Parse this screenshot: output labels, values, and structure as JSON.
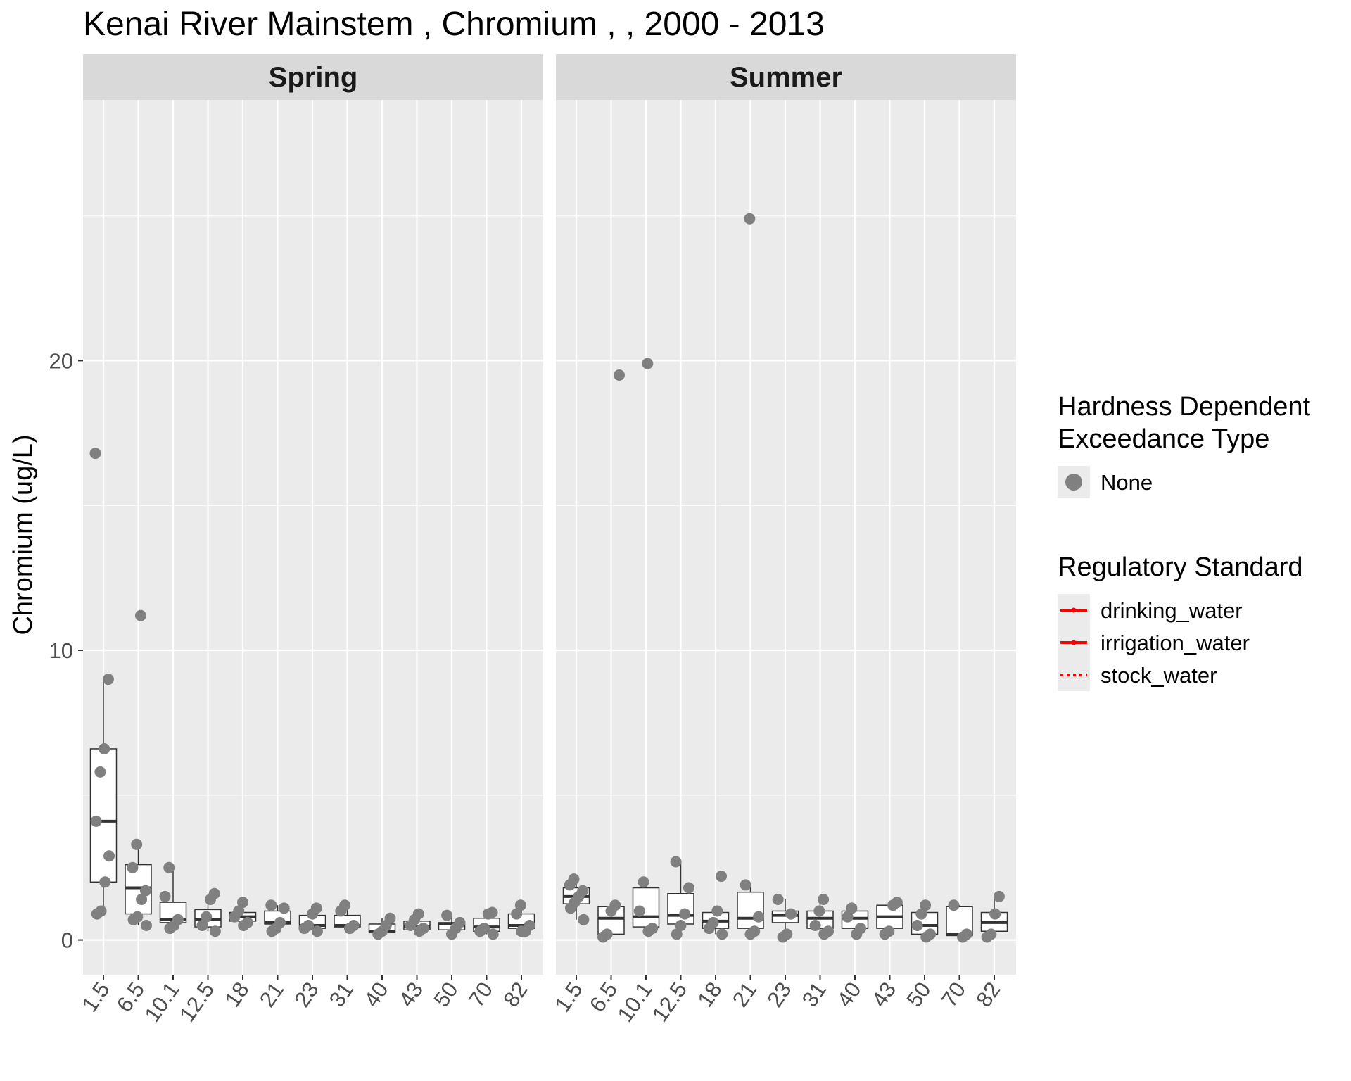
{
  "chart_data": {
    "type": "boxplot",
    "title": "Kenai River Mainstem , Chromium ,  , 2000 - 2013",
    "ylabel": "Chromium (ug/L)",
    "xlabel": "",
    "ylim": [
      -1.2,
      29
    ],
    "y_ticks": [
      0,
      10,
      20
    ],
    "grid": true,
    "categories": [
      "1.5",
      "6.5",
      "10.1",
      "12.5",
      "18",
      "21",
      "23",
      "31",
      "40",
      "43",
      "50",
      "70",
      "82"
    ],
    "panels": [
      {
        "name": "Spring",
        "boxes": [
          {
            "q1": 2.0,
            "median": 4.1,
            "q3": 6.6,
            "whisker_low": 1.0,
            "whisker_high": 8.9
          },
          {
            "q1": 0.9,
            "median": 1.8,
            "q3": 2.6,
            "whisker_low": 0.5,
            "whisker_high": 3.4
          },
          {
            "q1": 0.6,
            "median": 0.7,
            "q3": 1.3,
            "whisker_low": 0.4,
            "whisker_high": 2.5
          },
          {
            "q1": 0.45,
            "median": 0.7,
            "q3": 1.05,
            "whisker_low": 0.3,
            "whisker_high": 1.6
          },
          {
            "q1": 0.65,
            "median": 0.8,
            "q3": 0.95,
            "whisker_low": 0.5,
            "whisker_high": 1.3
          },
          {
            "q1": 0.55,
            "median": 0.6,
            "q3": 1.0,
            "whisker_low": 0.3,
            "whisker_high": 1.2
          },
          {
            "q1": 0.4,
            "median": 0.5,
            "q3": 0.85,
            "whisker_low": 0.3,
            "whisker_high": 1.1
          },
          {
            "q1": 0.45,
            "median": 0.5,
            "q3": 0.85,
            "whisker_low": 0.35,
            "whisker_high": 1.2
          },
          {
            "q1": 0.25,
            "median": 0.3,
            "q3": 0.55,
            "whisker_low": 0.2,
            "whisker_high": 0.75
          },
          {
            "q1": 0.35,
            "median": 0.45,
            "q3": 0.65,
            "whisker_low": 0.3,
            "whisker_high": 0.9
          },
          {
            "q1": 0.35,
            "median": 0.55,
            "q3": 0.6,
            "whisker_low": 0.2,
            "whisker_high": 0.85
          },
          {
            "q1": 0.3,
            "median": 0.45,
            "q3": 0.75,
            "whisker_low": 0.2,
            "whisker_high": 0.95
          },
          {
            "q1": 0.4,
            "median": 0.5,
            "q3": 0.9,
            "whisker_low": 0.3,
            "whisker_high": 1.2
          }
        ],
        "points": [
          [
            16.8,
            9.0,
            6.6,
            5.8,
            4.1,
            2.9,
            2.0,
            1.0,
            0.9
          ],
          [
            11.2,
            3.3,
            2.5,
            1.7,
            1.4,
            0.8,
            0.7,
            0.5
          ],
          [
            2.5,
            1.5,
            0.7,
            0.5,
            0.4
          ],
          [
            1.6,
            1.4,
            0.8,
            0.5,
            0.3
          ],
          [
            1.3,
            1.0,
            0.8,
            0.6,
            0.5
          ],
          [
            1.2,
            1.1,
            0.6,
            0.4,
            0.3
          ],
          [
            1.1,
            0.9,
            0.5,
            0.4,
            0.3
          ],
          [
            1.2,
            1.0,
            0.5,
            0.4
          ],
          [
            0.75,
            0.5,
            0.3,
            0.2
          ],
          [
            0.9,
            0.7,
            0.5,
            0.4,
            0.3
          ],
          [
            0.85,
            0.6,
            0.4,
            0.2
          ],
          [
            0.95,
            0.9,
            0.4,
            0.3,
            0.2
          ],
          [
            1.2,
            0.9,
            0.5,
            0.3,
            0.3
          ]
        ]
      },
      {
        "name": "Summer",
        "boxes": [
          {
            "q1": 1.25,
            "median": 1.5,
            "q3": 1.8,
            "whisker_low": 0.7,
            "whisker_high": 2.1
          },
          {
            "q1": 0.2,
            "median": 0.75,
            "q3": 1.15,
            "whisker_low": 0.1,
            "whisker_high": 1.2
          },
          {
            "q1": 0.45,
            "median": 0.8,
            "q3": 1.8,
            "whisker_low": 0.3,
            "whisker_high": 2.0
          },
          {
            "q1": 0.55,
            "median": 0.85,
            "q3": 1.6,
            "whisker_low": 0.2,
            "whisker_high": 2.7
          },
          {
            "q1": 0.4,
            "median": 0.65,
            "q3": 0.95,
            "whisker_low": 0.2,
            "whisker_high": 1.0
          },
          {
            "q1": 0.4,
            "median": 0.75,
            "q3": 1.65,
            "whisker_low": 0.2,
            "whisker_high": 1.9
          },
          {
            "q1": 0.6,
            "median": 0.85,
            "q3": 1.0,
            "whisker_low": 0.2,
            "whisker_high": 1.4
          },
          {
            "q1": 0.4,
            "median": 0.75,
            "q3": 1.0,
            "whisker_low": 0.2,
            "whisker_high": 1.4
          },
          {
            "q1": 0.4,
            "median": 0.75,
            "q3": 1.0,
            "whisker_low": 0.2,
            "whisker_high": 1.1
          },
          {
            "q1": 0.4,
            "median": 0.8,
            "q3": 1.2,
            "whisker_low": 0.2,
            "whisker_high": 1.3
          },
          {
            "q1": 0.2,
            "median": 0.5,
            "q3": 0.95,
            "whisker_low": 0.1,
            "whisker_high": 1.1
          },
          {
            "q1": 0.15,
            "median": 0.2,
            "q3": 1.15,
            "whisker_low": 0.1,
            "whisker_high": 1.2
          },
          {
            "q1": 0.3,
            "median": 0.6,
            "q3": 0.95,
            "whisker_low": 0.1,
            "whisker_high": 1.5
          }
        ],
        "points": [
          [
            2.1,
            1.9,
            1.7,
            1.5,
            1.3,
            1.1,
            0.7
          ],
          [
            19.5,
            1.2,
            1.0,
            0.2,
            0.1
          ],
          [
            19.9,
            2.0,
            1.0,
            0.4,
            0.3
          ],
          [
            2.7,
            1.8,
            0.9,
            0.5,
            0.2
          ],
          [
            2.2,
            1.0,
            0.6,
            0.4,
            0.2
          ],
          [
            24.9,
            1.9,
            0.8,
            0.3,
            0.2
          ],
          [
            1.4,
            0.9,
            0.2,
            0.1
          ],
          [
            1.4,
            1.0,
            0.5,
            0.3,
            0.2
          ],
          [
            1.1,
            0.8,
            0.4,
            0.2
          ],
          [
            1.3,
            1.2,
            0.3,
            0.2
          ],
          [
            1.2,
            0.9,
            0.5,
            0.2,
            0.1
          ],
          [
            1.2,
            0.2,
            0.1
          ],
          [
            1.5,
            0.9,
            0.2,
            0.1
          ]
        ]
      }
    ],
    "legends": [
      {
        "title_lines": [
          "Hardness Dependent",
          "Exceedance Type"
        ],
        "entries": [
          {
            "label": "None",
            "symbol": "point",
            "color": "#808080"
          }
        ]
      },
      {
        "title_lines": [
          "Regulatory Standard"
        ],
        "entries": [
          {
            "label": "drinking_water",
            "symbol": "line",
            "color": "#ff0000"
          },
          {
            "label": "irrigation_water",
            "symbol": "line",
            "color": "#ff0000"
          },
          {
            "label": "stock_water",
            "symbol": "dotted",
            "color": "#ff0000"
          }
        ]
      }
    ],
    "legend_position": "right",
    "colors": {
      "panel_bg": "#ebebeb",
      "grid": "#ffffff",
      "strip_bg": "#d9d9d9",
      "point": "#808080",
      "box_fill": "#ffffff",
      "box_stroke": "#333333",
      "standard": "#ff0000"
    }
  }
}
